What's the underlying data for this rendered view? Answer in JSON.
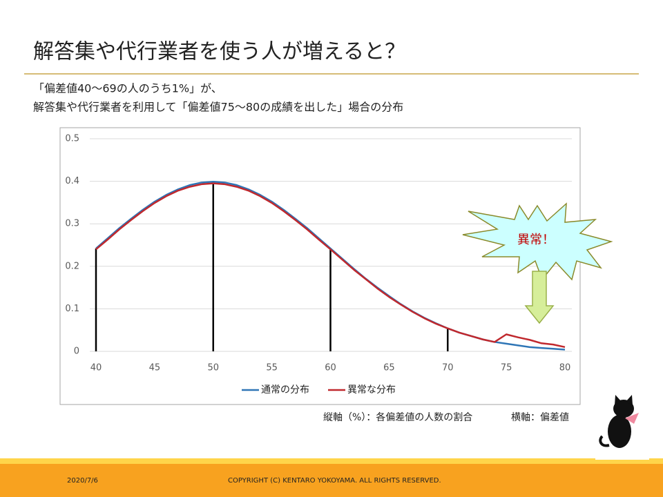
{
  "slide": {
    "title": "解答集や代行業者を使う人が増えると？",
    "date": "2020/7/6",
    "copyright": "COPYRIGHT (C) KENTARO YOKOYAMA. ALL RIGHTS RESERVED."
  },
  "chart_data": {
    "type": "line",
    "subtitle": [
      "「偏差値40～69の人のうち1%」が、",
      "解答集や代行業者を利用して「偏差値75～80の成績を出した」場合の分布"
    ],
    "annotation": "異常！",
    "axis_note": [
      "縦軸（%）：各偏差値の人数の割合",
      "横軸：偏差値"
    ],
    "x": [
      40,
      41,
      42,
      43,
      44,
      45,
      46,
      47,
      48,
      49,
      50,
      51,
      52,
      53,
      54,
      55,
      56,
      57,
      58,
      59,
      60,
      61,
      62,
      63,
      64,
      65,
      66,
      67,
      68,
      69,
      70,
      71,
      72,
      73,
      74,
      75,
      76,
      77,
      78,
      79,
      80
    ],
    "series": [
      {
        "name": "通常の分布",
        "color": "#2e75b6",
        "values": [
          0.242,
          0.266,
          0.29,
          0.312,
          0.333,
          0.352,
          0.368,
          0.381,
          0.391,
          0.397,
          0.399,
          0.397,
          0.391,
          0.381,
          0.368,
          0.352,
          0.333,
          0.312,
          0.29,
          0.266,
          0.242,
          0.218,
          0.194,
          0.171,
          0.15,
          0.13,
          0.111,
          0.094,
          0.079,
          0.066,
          0.054,
          0.044,
          0.036,
          0.028,
          0.022,
          0.018,
          0.014,
          0.01,
          0.008,
          0.006,
          0.004
        ]
      },
      {
        "name": "異常な分布",
        "color": "#c0282d",
        "values": [
          0.24,
          0.263,
          0.287,
          0.309,
          0.33,
          0.349,
          0.365,
          0.378,
          0.387,
          0.393,
          0.395,
          0.393,
          0.387,
          0.378,
          0.365,
          0.349,
          0.33,
          0.309,
          0.287,
          0.263,
          0.24,
          0.216,
          0.192,
          0.17,
          0.148,
          0.128,
          0.11,
          0.093,
          0.078,
          0.065,
          0.054,
          0.044,
          0.036,
          0.028,
          0.022,
          0.04,
          0.033,
          0.027,
          0.019,
          0.016,
          0.01
        ]
      }
    ],
    "drop_lines_x": [
      40,
      50,
      60,
      70
    ],
    "xlim": [
      40,
      80
    ],
    "xticks": [
      40,
      45,
      50,
      55,
      60,
      65,
      70,
      75,
      80
    ],
    "ylim": [
      0,
      0.5
    ],
    "yticks": [
      0,
      0.1,
      0.2,
      0.3,
      0.4,
      0.5
    ],
    "grid": true,
    "legend": "bottom"
  }
}
